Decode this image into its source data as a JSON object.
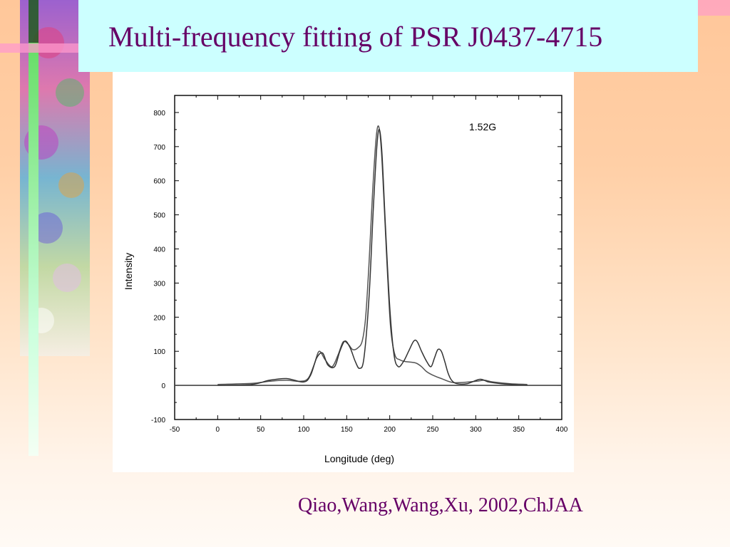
{
  "slide": {
    "title": "Multi-frequency fitting of PSR J0437-4715",
    "citation": "Qiao,Wang,Wang,Xu, 2002,ChJAA",
    "colors": {
      "title_text": "#660066",
      "title_background": "#ccffff",
      "background_top": "#ffc79a",
      "background_bottom": "#fffaf5",
      "accent_stripe": "#99ff99"
    }
  },
  "chart_data": {
    "type": "line",
    "title": "",
    "annotation": "1.52G",
    "xlabel": "Longitude (deg)",
    "ylabel": "Intensity",
    "xlim": [
      -50,
      400
    ],
    "ylim": [
      -100,
      850
    ],
    "xticks": [
      -50,
      0,
      50,
      100,
      150,
      200,
      250,
      300,
      350,
      400
    ],
    "yticks": [
      -100,
      0,
      100,
      200,
      300,
      400,
      500,
      600,
      700,
      800
    ],
    "grid": false,
    "legend": "none",
    "series": [
      {
        "x": [
          0,
          40,
          60,
          80,
          95,
          105,
          112,
          118,
          125,
          133,
          140,
          146,
          152,
          157,
          163,
          168,
          172,
          176,
          180,
          184,
          187,
          190,
          193,
          197,
          201,
          206,
          212,
          218,
          225,
          231,
          237,
          243,
          250,
          260,
          275,
          300,
          310,
          320,
          340,
          360
        ],
        "values": [
          3,
          6,
          12,
          15,
          12,
          20,
          60,
          100,
          75,
          55,
          90,
          128,
          120,
          105,
          110,
          130,
          200,
          360,
          560,
          720,
          760,
          700,
          560,
          350,
          170,
          90,
          75,
          70,
          68,
          65,
          55,
          40,
          30,
          20,
          8,
          12,
          15,
          10,
          5,
          3
        ]
      },
      {
        "x": [
          0,
          40,
          60,
          80,
          100,
          108,
          115,
          122,
          128,
          136,
          142,
          148,
          154,
          160,
          165,
          170,
          176,
          181,
          185,
          188,
          191,
          195,
          200,
          205,
          210,
          216,
          222,
          228,
          232,
          237,
          243,
          248,
          252,
          256,
          260,
          264,
          268,
          272,
          278,
          290,
          305,
          315,
          330,
          360
        ],
        "values": [
          0,
          3,
          15,
          20,
          10,
          30,
          80,
          95,
          60,
          55,
          100,
          130,
          110,
          70,
          50,
          80,
          260,
          520,
          700,
          750,
          680,
          470,
          230,
          90,
          55,
          70,
          100,
          130,
          128,
          100,
          70,
          55,
          80,
          105,
          100,
          70,
          35,
          15,
          5,
          5,
          18,
          10,
          5,
          0
        ]
      }
    ]
  }
}
